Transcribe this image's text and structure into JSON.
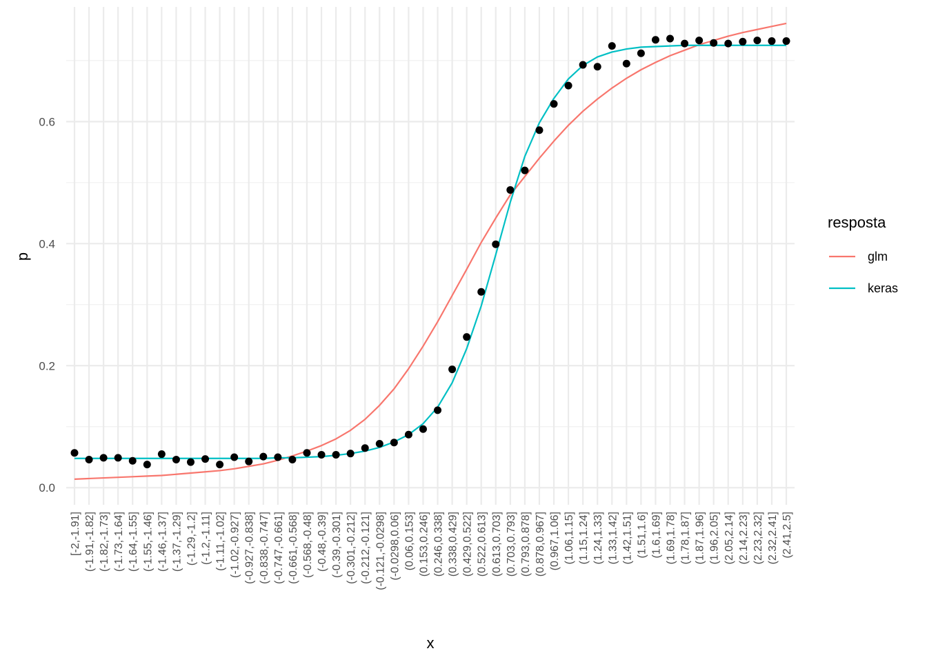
{
  "chart_data": {
    "type": "line",
    "xlabel": "x",
    "ylabel": "p",
    "ylim": [
      -0.028,
      0.788
    ],
    "yticks": [
      0.0,
      0.2,
      0.4,
      0.6
    ],
    "ytick_labels": [
      "0.0",
      "0.2",
      "0.4",
      "0.6"
    ],
    "grid": true,
    "legend": {
      "title": "resposta",
      "position": "right"
    },
    "categories": [
      "[-2,-1.91]",
      "(-1.91,-1.82]",
      "(-1.82,-1.73]",
      "(-1.73,-1.64]",
      "(-1.64,-1.55]",
      "(-1.55,-1.46]",
      "(-1.46,-1.37]",
      "(-1.37,-1.29]",
      "(-1.29,-1.2]",
      "(-1.2,-1.11]",
      "(-1.11,-1.02]",
      "(-1.02,-0.927]",
      "(-0.927,-0.838]",
      "(-0.838,-0.747]",
      "(-0.747,-0.661]",
      "(-0.661,-0.568]",
      "(-0.568,-0.48]",
      "(-0.48,-0.39]",
      "(-0.39,-0.301]",
      "(-0.301,-0.212]",
      "(-0.212,-0.121]",
      "(-0.121,-0.0298]",
      "(-0.0298,0.06]",
      "(0.06,0.153]",
      "(0.153,0.246]",
      "(0.246,0.338]",
      "(0.338,0.429]",
      "(0.429,0.522]",
      "(0.522,0.613]",
      "(0.613,0.703]",
      "(0.703,0.793]",
      "(0.793,0.878]",
      "(0.878,0.967]",
      "(0.967,1.06]",
      "(1.06,1.15]",
      "(1.15,1.24]",
      "(1.24,1.33]",
      "(1.33,1.42]",
      "(1.42,1.51]",
      "(1.51,1.6]",
      "(1.6,1.69]",
      "(1.69,1.78]",
      "(1.78,1.87]",
      "(1.87,1.96]",
      "(1.96,2.05]",
      "(2.05,2.14]",
      "(2.14,2.23]",
      "(2.23,2.32]",
      "(2.32,2.41]",
      "(2.41,2.5]"
    ],
    "points": {
      "color": "#000000",
      "values": [
        0.057,
        0.046,
        0.049,
        0.049,
        0.044,
        0.038,
        0.055,
        0.046,
        0.042,
        0.047,
        0.038,
        0.05,
        0.043,
        0.051,
        0.05,
        0.046,
        0.057,
        0.054,
        0.054,
        0.056,
        0.065,
        0.072,
        0.074,
        0.087,
        0.096,
        0.127,
        0.194,
        0.247,
        0.321,
        0.399,
        0.488,
        0.52,
        0.586,
        0.629,
        0.659,
        0.693,
        0.69,
        0.724,
        0.695,
        0.712,
        0.734,
        0.736,
        0.728,
        0.733,
        0.729,
        0.728,
        0.731,
        0.733,
        0.732,
        0.732
      ]
    },
    "series": [
      {
        "name": "glm",
        "color": "#F8766D",
        "values": [
          0.014,
          0.015,
          0.016,
          0.017,
          0.018,
          0.019,
          0.02,
          0.022,
          0.024,
          0.026,
          0.028,
          0.031,
          0.035,
          0.039,
          0.045,
          0.052,
          0.06,
          0.069,
          0.08,
          0.094,
          0.112,
          0.135,
          0.162,
          0.195,
          0.232,
          0.272,
          0.315,
          0.358,
          0.402,
          0.442,
          0.48,
          0.51,
          0.54,
          0.568,
          0.594,
          0.617,
          0.637,
          0.655,
          0.671,
          0.685,
          0.697,
          0.708,
          0.717,
          0.726,
          0.733,
          0.74,
          0.746,
          0.751,
          0.756,
          0.761
        ]
      },
      {
        "name": "keras",
        "color": "#00BFC4",
        "values": [
          0.048,
          0.048,
          0.048,
          0.048,
          0.048,
          0.048,
          0.048,
          0.048,
          0.048,
          0.048,
          0.048,
          0.048,
          0.048,
          0.048,
          0.049,
          0.049,
          0.05,
          0.051,
          0.053,
          0.056,
          0.06,
          0.066,
          0.075,
          0.087,
          0.105,
          0.132,
          0.172,
          0.228,
          0.298,
          0.382,
          0.468,
          0.543,
          0.598,
          0.638,
          0.67,
          0.692,
          0.706,
          0.714,
          0.719,
          0.722,
          0.723,
          0.724,
          0.725,
          0.725,
          0.725,
          0.725,
          0.725,
          0.725,
          0.725,
          0.725
        ]
      }
    ]
  }
}
